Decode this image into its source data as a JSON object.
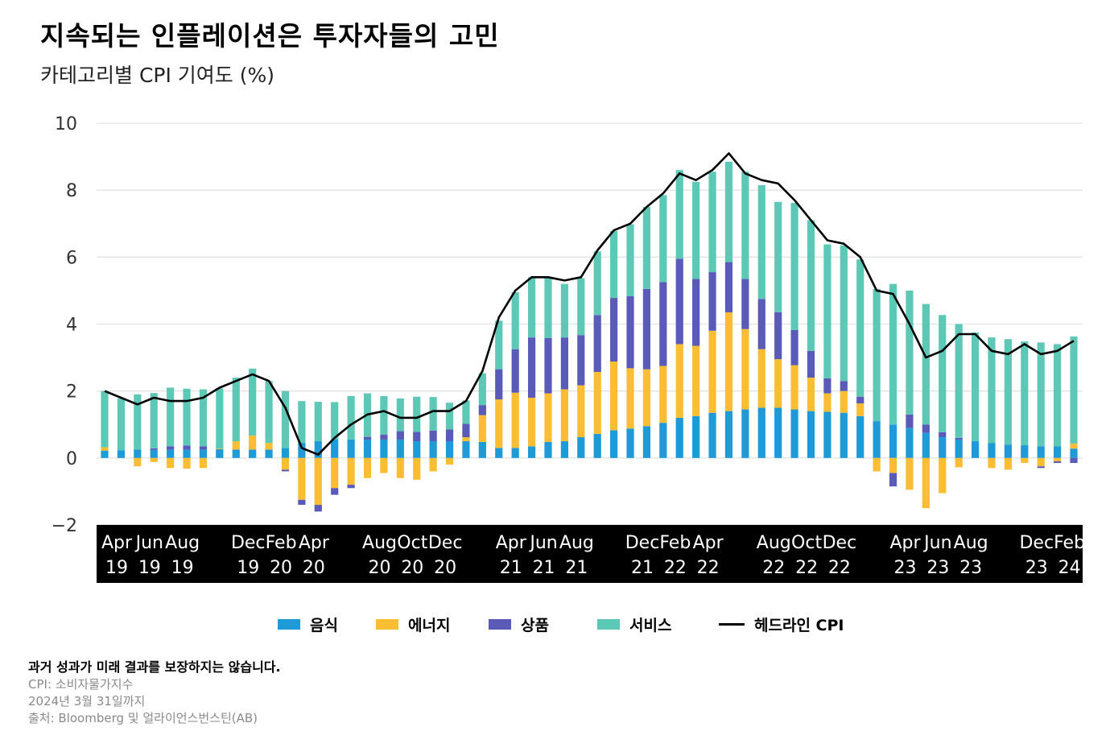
{
  "title": "지속되는 인플레이션은 투자자들의 고민",
  "subtitle": "카테고리별 CPI 기여도 (%)",
  "legend": [
    {
      "label": "음식",
      "color": "#1e9ad6",
      "kind": "bar"
    },
    {
      "label": "에너지",
      "color": "#fbbd34",
      "kind": "bar"
    },
    {
      "label": "상품",
      "color": "#5a5bb8",
      "kind": "bar"
    },
    {
      "label": "서비스",
      "color": "#5ec8b7",
      "kind": "bar"
    },
    {
      "label": "헤드라인 CPI",
      "color": "#000000",
      "kind": "line"
    }
  ],
  "notes": {
    "disclaimer": "과거 성과가 미래 결과를 보장하지는 않습니다.",
    "cpi_def": "CPI: 소비자물가지수",
    "as_of": "2024년 3월 31일까지",
    "source": "출처: Bloomberg 및 얼라이언스번스틴(AB)"
  },
  "chart_data": {
    "type": "bar",
    "stacked": true,
    "ylim": [
      -2,
      10
    ],
    "yticks": [
      "−2",
      "0",
      "2",
      "4",
      "6",
      "8",
      "10"
    ],
    "ytick_values": [
      -2,
      0,
      2,
      4,
      6,
      8,
      10
    ],
    "grid": true,
    "x_tick_labels": [
      {
        "month": "Apr",
        "year": "19",
        "index": 0
      },
      {
        "month": "Jun",
        "year": "19",
        "index": 2
      },
      {
        "month": "Aug",
        "year": "19",
        "index": 4
      },
      {
        "month": "Dec",
        "year": "19",
        "index": 8
      },
      {
        "month": "Feb",
        "year": "20",
        "index": 10
      },
      {
        "month": "Apr",
        "year": "20",
        "index": 12
      },
      {
        "month": "Aug",
        "year": "20",
        "index": 16
      },
      {
        "month": "Oct",
        "year": "20",
        "index": 18
      },
      {
        "month": "Dec",
        "year": "20",
        "index": 20
      },
      {
        "month": "Apr",
        "year": "21",
        "index": 24
      },
      {
        "month": "Jun",
        "year": "21",
        "index": 26
      },
      {
        "month": "Aug",
        "year": "21",
        "index": 28
      },
      {
        "month": "Dec",
        "year": "21",
        "index": 32
      },
      {
        "month": "Feb",
        "year": "22",
        "index": 34
      },
      {
        "month": "Apr",
        "year": "22",
        "index": 36
      },
      {
        "month": "Aug",
        "year": "22",
        "index": 40
      },
      {
        "month": "Oct",
        "year": "22",
        "index": 42
      },
      {
        "month": "Dec",
        "year": "22",
        "index": 44
      },
      {
        "month": "Apr",
        "year": "23",
        "index": 48
      },
      {
        "month": "Jun",
        "year": "23",
        "index": 50
      },
      {
        "month": "Aug",
        "year": "23",
        "index": 52
      },
      {
        "month": "Dec",
        "year": "23",
        "index": 56
      },
      {
        "month": "Feb",
        "year": "24",
        "index": 58
      }
    ],
    "categories": [
      "2019-04",
      "2019-05",
      "2019-06",
      "2019-07",
      "2019-08",
      "2019-09",
      "2019-10",
      "2019-11",
      "2019-12",
      "2020-01",
      "2020-02",
      "2020-03",
      "2020-04",
      "2020-05",
      "2020-06",
      "2020-07",
      "2020-08",
      "2020-09",
      "2020-10",
      "2020-11",
      "2020-12",
      "2021-01",
      "2021-02",
      "2021-03",
      "2021-04",
      "2021-05",
      "2021-06",
      "2021-07",
      "2021-08",
      "2021-09",
      "2021-10",
      "2021-11",
      "2021-12",
      "2022-01",
      "2022-02",
      "2022-03",
      "2022-04",
      "2022-05",
      "2022-06",
      "2022-07",
      "2022-08",
      "2022-09",
      "2022-10",
      "2022-11",
      "2022-12",
      "2023-01",
      "2023-02",
      "2023-03",
      "2023-04",
      "2023-05",
      "2023-06",
      "2023-07",
      "2023-08",
      "2023-09",
      "2023-10",
      "2023-11",
      "2023-12",
      "2024-01",
      "2024-02",
      "2024-03"
    ],
    "series": [
      {
        "name": "음식",
        "color": "#1e9ad6",
        "values": [
          0.22,
          0.23,
          0.25,
          0.24,
          0.25,
          0.25,
          0.25,
          0.26,
          0.25,
          0.25,
          0.25,
          0.3,
          0.45,
          0.5,
          0.55,
          0.55,
          0.55,
          0.55,
          0.55,
          0.5,
          0.5,
          0.5,
          0.5,
          0.48,
          0.3,
          0.3,
          0.35,
          0.48,
          0.5,
          0.62,
          0.72,
          0.83,
          0.88,
          0.95,
          1.05,
          1.2,
          1.25,
          1.35,
          1.4,
          1.45,
          1.5,
          1.5,
          1.45,
          1.4,
          1.38,
          1.35,
          1.25,
          1.1,
          1.0,
          0.9,
          0.75,
          0.62,
          0.55,
          0.5,
          0.45,
          0.4,
          0.38,
          0.35,
          0.35,
          0.28
        ]
      },
      {
        "name": "에너지",
        "color": "#fbbd34",
        "values": [
          0.1,
          0.0,
          -0.25,
          -0.12,
          -0.3,
          -0.32,
          -0.3,
          0.02,
          0.25,
          0.42,
          0.2,
          -0.35,
          -1.25,
          -1.4,
          -0.9,
          -0.8,
          -0.6,
          -0.45,
          -0.6,
          -0.65,
          -0.4,
          -0.2,
          0.12,
          0.8,
          1.45,
          1.65,
          1.45,
          1.45,
          1.55,
          1.55,
          1.85,
          2.05,
          1.8,
          1.7,
          1.7,
          2.2,
          2.1,
          2.45,
          2.95,
          2.4,
          1.75,
          1.45,
          1.32,
          1.0,
          0.55,
          0.65,
          0.38,
          -0.4,
          -0.45,
          -0.95,
          -1.5,
          -1.05,
          -0.28,
          0.0,
          -0.3,
          -0.35,
          -0.15,
          -0.25,
          -0.1,
          0.15
        ]
      },
      {
        "name": "상품",
        "color": "#5a5bb8",
        "values": [
          0.0,
          0.0,
          0.0,
          0.05,
          0.1,
          0.12,
          0.1,
          0.0,
          0.0,
          0.0,
          0.0,
          -0.05,
          -0.15,
          -0.2,
          -0.2,
          -0.1,
          0.08,
          0.15,
          0.25,
          0.28,
          0.32,
          0.35,
          0.4,
          0.3,
          0.9,
          1.3,
          1.8,
          1.65,
          1.55,
          1.5,
          1.7,
          1.9,
          2.15,
          2.4,
          2.5,
          2.55,
          2.0,
          1.75,
          1.5,
          1.5,
          1.5,
          1.4,
          1.05,
          0.8,
          0.45,
          0.3,
          0.2,
          0.0,
          -0.4,
          0.4,
          0.25,
          0.15,
          0.05,
          0.0,
          0.0,
          0.0,
          0.0,
          -0.05,
          -0.05,
          -0.15
        ]
      },
      {
        "name": "서비스",
        "color": "#5ec8b7",
        "values": [
          1.68,
          1.55,
          1.65,
          1.65,
          1.75,
          1.7,
          1.7,
          1.8,
          1.9,
          2.0,
          1.85,
          1.7,
          1.25,
          1.18,
          1.12,
          1.3,
          1.3,
          1.15,
          0.98,
          1.05,
          1.0,
          0.8,
          0.7,
          0.95,
          1.45,
          1.7,
          1.8,
          1.8,
          1.6,
          1.7,
          1.9,
          2.0,
          2.15,
          2.45,
          2.6,
          2.65,
          2.9,
          3.0,
          3.0,
          3.2,
          3.4,
          3.3,
          3.8,
          3.9,
          4.0,
          4.05,
          4.1,
          3.95,
          4.2,
          3.7,
          3.6,
          3.5,
          3.4,
          3.25,
          3.15,
          3.15,
          3.1,
          3.1,
          3.05,
          3.2
        ]
      },
      {
        "name": "헤드라인 CPI",
        "color": "#000000",
        "type": "line",
        "values": [
          2.0,
          1.8,
          1.6,
          1.8,
          1.7,
          1.7,
          1.8,
          2.1,
          2.3,
          2.5,
          2.3,
          1.5,
          0.3,
          0.1,
          0.6,
          1.0,
          1.3,
          1.4,
          1.2,
          1.2,
          1.4,
          1.4,
          1.7,
          2.6,
          4.2,
          5.0,
          5.4,
          5.4,
          5.3,
          5.4,
          6.2,
          6.8,
          7.0,
          7.5,
          7.9,
          8.5,
          8.3,
          8.6,
          9.1,
          8.5,
          8.3,
          8.2,
          7.7,
          7.1,
          6.5,
          6.4,
          6.0,
          5.0,
          4.9,
          4.0,
          3.0,
          3.2,
          3.7,
          3.7,
          3.2,
          3.1,
          3.4,
          3.1,
          3.2,
          3.5
        ]
      }
    ]
  }
}
